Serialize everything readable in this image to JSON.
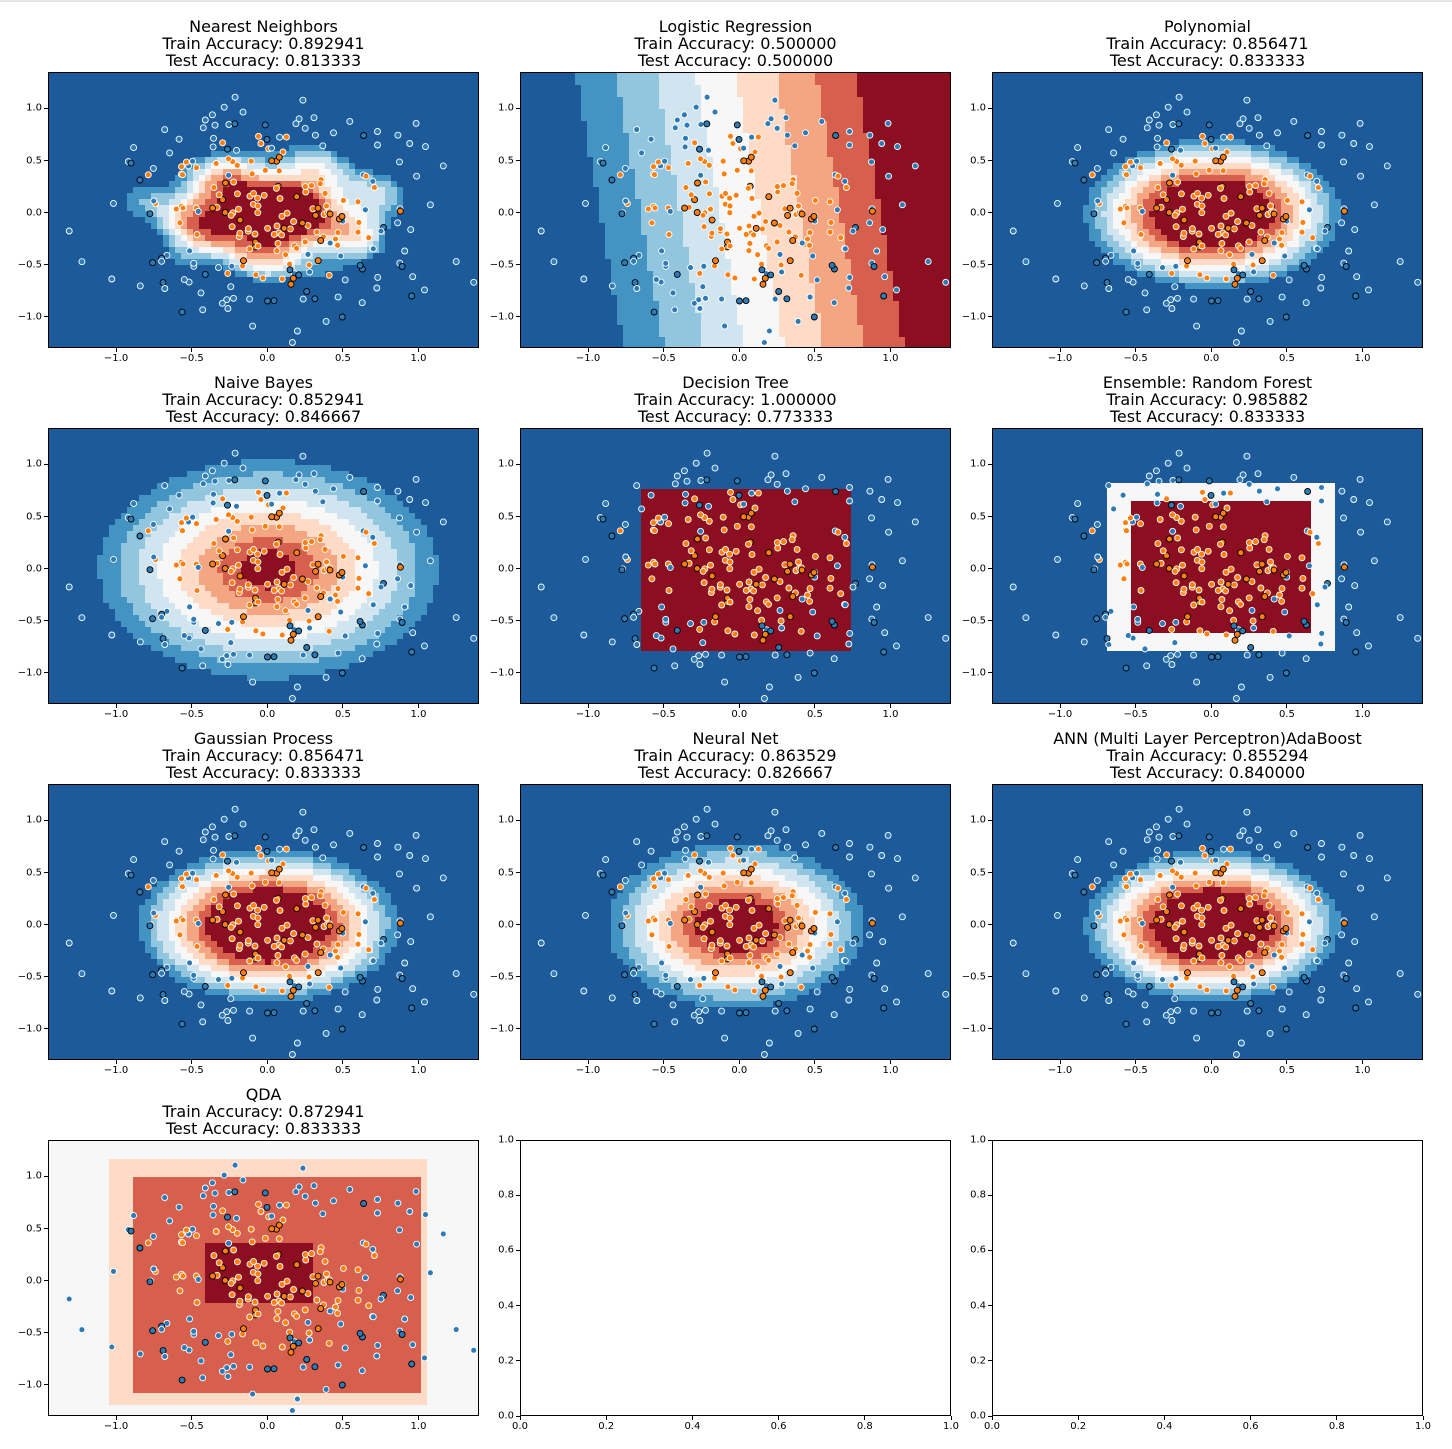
{
  "colors": {
    "rdbu": [
      "#053061",
      "#2166ac",
      "#4393c3",
      "#92c5de",
      "#d1e5f0",
      "#f7f7f7",
      "#fddbc7",
      "#f4a582",
      "#d6604d",
      "#b2182b",
      "#67001f"
    ],
    "deep_blue": "#1d5a9a",
    "deep_red": "#8b0e21",
    "train_class0": "#2c7bb6",
    "train_class1": "#ff7f0e",
    "point_edge_train": "#ffffff",
    "point_edge_test": "#000000"
  },
  "x_ticks": [
    "−1.0",
    "−0.5",
    "0.0",
    "0.5",
    "1.0"
  ],
  "y_ticks": [
    "1.0",
    "0.5",
    "0.0",
    "−0.5",
    "−1.0"
  ],
  "empty_ticks": [
    "0.0",
    "0.2",
    "0.4",
    "0.6",
    "0.8",
    "1.0"
  ],
  "chart_data": [
    {
      "type": "contour",
      "name": "Nearest Neighbors",
      "train": "Train Accuracy: 0.892941",
      "test": "Test Accuracy: 0.813333",
      "xlim": [
        -1.45,
        1.4
      ],
      "ylim": [
        -1.3,
        1.35
      ]
    },
    {
      "type": "contour",
      "name": "Logistic Regression",
      "train": "Train Accuracy: 0.500000",
      "test": "Test Accuracy: 0.500000",
      "xlim": [
        -1.45,
        1.4
      ],
      "ylim": [
        -1.3,
        1.35
      ]
    },
    {
      "type": "contour",
      "name": "Polynomial",
      "train": "Train Accuracy: 0.856471",
      "test": "Test Accuracy: 0.833333",
      "xlim": [
        -1.45,
        1.4
      ],
      "ylim": [
        -1.3,
        1.35
      ]
    },
    {
      "type": "contour",
      "name": "Naive Bayes",
      "train": "Train Accuracy: 0.852941",
      "test": "Test Accuracy: 0.846667",
      "xlim": [
        -1.45,
        1.4
      ],
      "ylim": [
        -1.3,
        1.35
      ]
    },
    {
      "type": "contour",
      "name": "Decision Tree",
      "train": "Train Accuracy: 1.000000",
      "test": "Test Accuracy: 0.773333",
      "xlim": [
        -1.45,
        1.4
      ],
      "ylim": [
        -1.3,
        1.35
      ]
    },
    {
      "type": "contour",
      "name": "Ensemble: Random Forest",
      "train": "Train Accuracy: 0.985882",
      "test": "Test Accuracy: 0.833333",
      "xlim": [
        -1.45,
        1.4
      ],
      "ylim": [
        -1.3,
        1.35
      ]
    },
    {
      "type": "contour",
      "name": "Gaussian Process",
      "train": "Train Accuracy: 0.856471",
      "test": "Test Accuracy: 0.833333",
      "xlim": [
        -1.45,
        1.4
      ],
      "ylim": [
        -1.3,
        1.35
      ]
    },
    {
      "type": "contour",
      "name": "Neural Net",
      "train": "Train Accuracy: 0.863529",
      "test": "Test Accuracy: 0.826667",
      "xlim": [
        -1.45,
        1.4
      ],
      "ylim": [
        -1.3,
        1.35
      ]
    },
    {
      "type": "contour",
      "name": "ANN (Multi Layer Perceptron)AdaBoost",
      "train": "Train Accuracy: 0.855294",
      "test": "Test Accuracy: 0.840000",
      "xlim": [
        -1.45,
        1.4
      ],
      "ylim": [
        -1.3,
        1.35
      ]
    },
    {
      "type": "contour",
      "name": "QDA",
      "train": "Train Accuracy: 0.872941",
      "test": "Test Accuracy: 0.833333",
      "xlim": [
        -1.45,
        1.4
      ],
      "ylim": [
        -1.3,
        1.35
      ]
    },
    {
      "type": "empty",
      "xlim": [
        0,
        1
      ],
      "ylim": [
        0,
        1
      ]
    },
    {
      "type": "empty",
      "xlim": [
        0,
        1
      ],
      "ylim": [
        0,
        1
      ]
    }
  ]
}
